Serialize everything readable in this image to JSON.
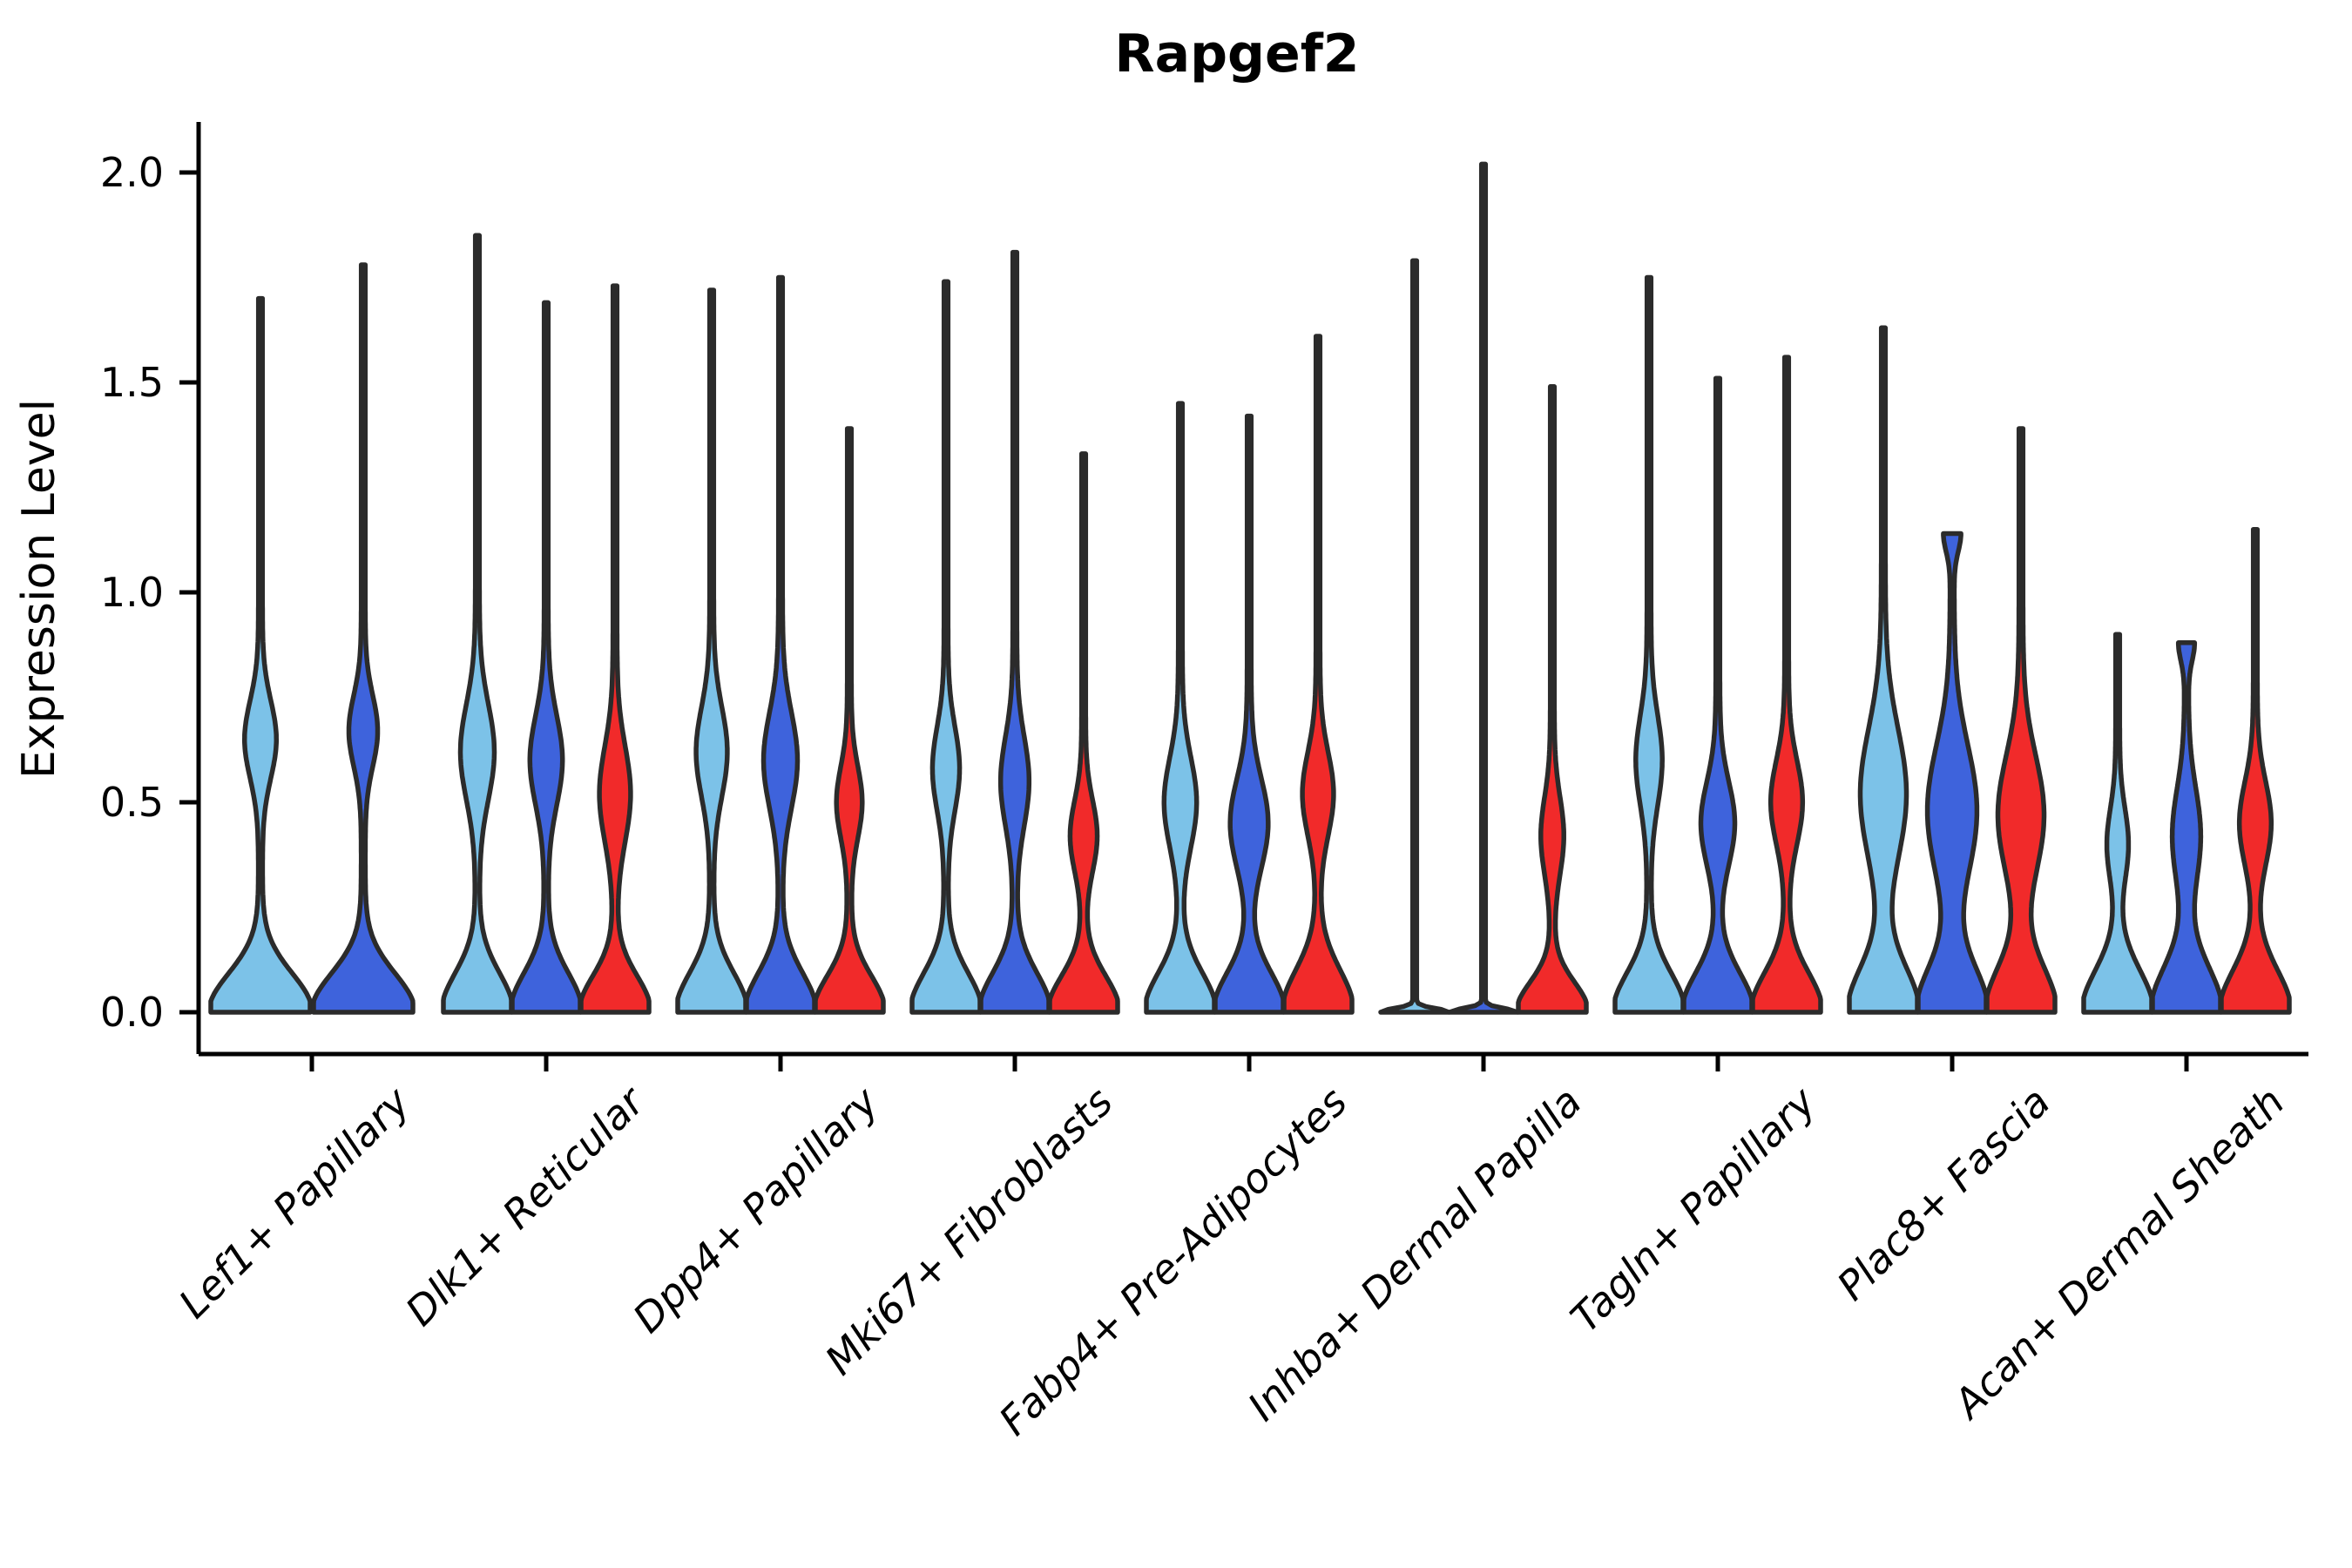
{
  "chart_data": {
    "type": "violin",
    "title": "Rapgef2",
    "xlabel": "",
    "ylabel": "Expression Level",
    "ylim": [
      0.0,
      2.0
    ],
    "ytick_values": [
      0.0,
      0.5,
      1.0,
      1.5,
      2.0
    ],
    "ytick_labels": [
      "0.0",
      "0.5",
      "1.0",
      "1.5",
      "2.0"
    ],
    "grid": false,
    "legend_position": "none",
    "categories": [
      "Lef1+ Papillary",
      "Dlk1+ Reticular",
      "Dpp4+ Papillary",
      "Mki67+ Fibroblasts",
      "Fabp4+ Pre-Adipocytes",
      "Inhba+ Dermal Papilla",
      "Tagln+ Papillary",
      "Plac8+ Fascia",
      "Acan+ Dermal Sheath"
    ],
    "series_colors": {
      "light_blue": "#7CC2E8",
      "royal_blue": "#3E63DC",
      "red": "#F12A2A"
    },
    "outline_color": "#2B2B2B",
    "axis_color": "#000000",
    "violins": [
      {
        "category": 0,
        "series": 0,
        "color": "light_blue",
        "max": 1.7,
        "base_sigma": 0.13,
        "bulge_center": 0.65,
        "bulge_sigma": 0.13,
        "bulge_amp": 0.28
      },
      {
        "category": 0,
        "series": 1,
        "color": "royal_blue",
        "max": 1.78,
        "base_sigma": 0.13,
        "bulge_center": 0.67,
        "bulge_sigma": 0.12,
        "bulge_amp": 0.25
      },
      {
        "category": 1,
        "series": 0,
        "color": "light_blue",
        "max": 1.85,
        "base_sigma": 0.13,
        "bulge_center": 0.62,
        "bulge_sigma": 0.16,
        "bulge_amp": 0.44
      },
      {
        "category": 1,
        "series": 1,
        "color": "royal_blue",
        "max": 1.69,
        "base_sigma": 0.13,
        "bulge_center": 0.6,
        "bulge_sigma": 0.15,
        "bulge_amp": 0.42
      },
      {
        "category": 1,
        "series": 2,
        "color": "red",
        "max": 1.73,
        "base_sigma": 0.12,
        "bulge_center": 0.52,
        "bulge_sigma": 0.16,
        "bulge_amp": 0.4
      },
      {
        "category": 2,
        "series": 0,
        "color": "light_blue",
        "max": 1.72,
        "base_sigma": 0.13,
        "bulge_center": 0.62,
        "bulge_sigma": 0.15,
        "bulge_amp": 0.4
      },
      {
        "category": 2,
        "series": 1,
        "color": "royal_blue",
        "max": 1.75,
        "base_sigma": 0.13,
        "bulge_center": 0.6,
        "bulge_sigma": 0.16,
        "bulge_amp": 0.44
      },
      {
        "category": 2,
        "series": 2,
        "color": "red",
        "max": 1.39,
        "base_sigma": 0.12,
        "bulge_center": 0.5,
        "bulge_sigma": 0.12,
        "bulge_amp": 0.32
      },
      {
        "category": 3,
        "series": 0,
        "color": "light_blue",
        "max": 1.74,
        "base_sigma": 0.13,
        "bulge_center": 0.58,
        "bulge_sigma": 0.14,
        "bulge_amp": 0.34
      },
      {
        "category": 3,
        "series": 1,
        "color": "royal_blue",
        "max": 1.81,
        "base_sigma": 0.13,
        "bulge_center": 0.55,
        "bulge_sigma": 0.15,
        "bulge_amp": 0.36
      },
      {
        "category": 3,
        "series": 2,
        "color": "red",
        "max": 1.33,
        "base_sigma": 0.12,
        "bulge_center": 0.42,
        "bulge_sigma": 0.12,
        "bulge_amp": 0.34
      },
      {
        "category": 4,
        "series": 0,
        "color": "light_blue",
        "max": 1.45,
        "base_sigma": 0.13,
        "bulge_center": 0.5,
        "bulge_sigma": 0.15,
        "bulge_amp": 0.42
      },
      {
        "category": 4,
        "series": 1,
        "color": "royal_blue",
        "max": 1.42,
        "base_sigma": 0.13,
        "bulge_center": 0.45,
        "bulge_sigma": 0.15,
        "bulge_amp": 0.5
      },
      {
        "category": 4,
        "series": 2,
        "color": "red",
        "max": 1.61,
        "base_sigma": 0.14,
        "bulge_center": 0.52,
        "bulge_sigma": 0.14,
        "bulge_amp": 0.4
      },
      {
        "category": 5,
        "series": 0,
        "color": "light_blue",
        "max": 1.79,
        "base_sigma": 0.012,
        "bulge_center": 0,
        "bulge_sigma": 1,
        "bulge_amp": 0
      },
      {
        "category": 5,
        "series": 1,
        "color": "royal_blue",
        "max": 2.02,
        "base_sigma": 0.012,
        "bulge_center": 0,
        "bulge_sigma": 1,
        "bulge_amp": 0
      },
      {
        "category": 5,
        "series": 2,
        "color": "red",
        "max": 1.49,
        "base_sigma": 0.1,
        "bulge_center": 0.42,
        "bulge_sigma": 0.13,
        "bulge_amp": 0.28
      },
      {
        "category": 6,
        "series": 0,
        "color": "light_blue",
        "max": 1.75,
        "base_sigma": 0.13,
        "bulge_center": 0.6,
        "bulge_sigma": 0.15,
        "bulge_amp": 0.33
      },
      {
        "category": 6,
        "series": 1,
        "color": "royal_blue",
        "max": 1.51,
        "base_sigma": 0.13,
        "bulge_center": 0.45,
        "bulge_sigma": 0.14,
        "bulge_amp": 0.44
      },
      {
        "category": 6,
        "series": 2,
        "color": "red",
        "max": 1.56,
        "base_sigma": 0.13,
        "bulge_center": 0.5,
        "bulge_sigma": 0.14,
        "bulge_amp": 0.41
      },
      {
        "category": 7,
        "series": 0,
        "color": "light_blue",
        "max": 1.63,
        "base_sigma": 0.15,
        "bulge_center": 0.52,
        "bulge_sigma": 0.22,
        "bulge_amp": 0.62
      },
      {
        "category": 7,
        "series": 1,
        "color": "royal_blue",
        "max": 1.14,
        "base_sigma": 0.15,
        "bulge_center": 0.48,
        "bulge_sigma": 0.22,
        "bulge_amp": 0.67,
        "tip_hw": 0.2
      },
      {
        "category": 7,
        "series": 2,
        "color": "red",
        "max": 1.39,
        "base_sigma": 0.15,
        "bulge_center": 0.47,
        "bulge_sigma": 0.2,
        "bulge_amp": 0.62
      },
      {
        "category": 8,
        "series": 0,
        "color": "light_blue",
        "max": 0.9,
        "base_sigma": 0.14,
        "bulge_center": 0.4,
        "bulge_sigma": 0.12,
        "bulge_amp": 0.26
      },
      {
        "category": 8,
        "series": 1,
        "color": "royal_blue",
        "max": 0.88,
        "base_sigma": 0.15,
        "bulge_center": 0.42,
        "bulge_sigma": 0.16,
        "bulge_amp": 0.36,
        "tip_hw": 0.18
      },
      {
        "category": 8,
        "series": 2,
        "color": "red",
        "max": 1.15,
        "base_sigma": 0.14,
        "bulge_center": 0.45,
        "bulge_sigma": 0.14,
        "bulge_amp": 0.41
      }
    ]
  }
}
